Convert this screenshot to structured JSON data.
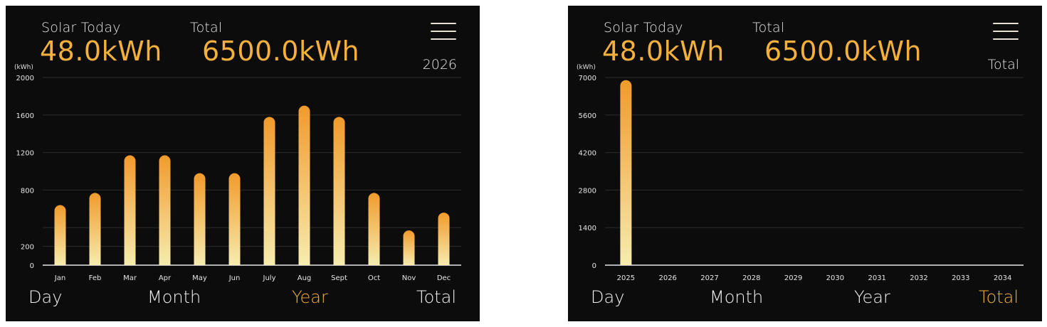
{
  "panels": [
    {
      "solar_today_label": "Solar Today",
      "solar_today_value": "48.0kWh",
      "total_label": "Total",
      "total_value": "6500.0kWh",
      "period_label": "2026",
      "tabs": [
        "Day",
        "Month",
        "Year",
        "Total"
      ],
      "active_tab": "Year",
      "chart_data": {
        "type": "bar",
        "unit_label": "(kWh)",
        "categories": [
          "Jan",
          "Feb",
          "Mar",
          "Apr",
          "May",
          "Jun",
          "July",
          "Aug",
          "Sept",
          "Oct",
          "Nov",
          "Dec"
        ],
        "values": [
          640,
          770,
          1170,
          1170,
          980,
          980,
          1580,
          1700,
          1580,
          770,
          370,
          560
        ],
        "y_ticks": [
          0,
          200,
          400,
          800,
          1200,
          1600,
          2000
        ],
        "y_tick_labels": [
          "0",
          "200",
          "",
          "800",
          "1200",
          "1600",
          "2000"
        ],
        "ylim": [
          0,
          2000
        ],
        "grid": true
      }
    },
    {
      "solar_today_label": "Solar Today",
      "solar_today_value": "48.0kWh",
      "total_label": "Total",
      "total_value": "6500.0kWh",
      "period_label": "Total",
      "tabs": [
        "Day",
        "Month",
        "Year",
        "Total"
      ],
      "active_tab": "Total",
      "chart_data": {
        "type": "bar",
        "unit_label": "(kWh)",
        "categories": [
          "2025",
          "2026",
          "2027",
          "2028",
          "2029",
          "2030",
          "2031",
          "2032",
          "2033",
          "2034"
        ],
        "values": [
          6900,
          0,
          0,
          0,
          0,
          0,
          0,
          0,
          0,
          0
        ],
        "y_ticks": [
          0,
          1400,
          2800,
          4200,
          5600,
          7000
        ],
        "y_tick_labels": [
          "0",
          "1400",
          "2800",
          "4200",
          "5600",
          "7000"
        ],
        "ylim": [
          0,
          7000
        ],
        "grid": true
      }
    }
  ],
  "colors": {
    "accent": "#f3b03c",
    "bar_top": "#f19a2c",
    "bar_bottom": "#f6ecae",
    "background": "#0c0c0c",
    "grid": "#2b2b2b"
  }
}
